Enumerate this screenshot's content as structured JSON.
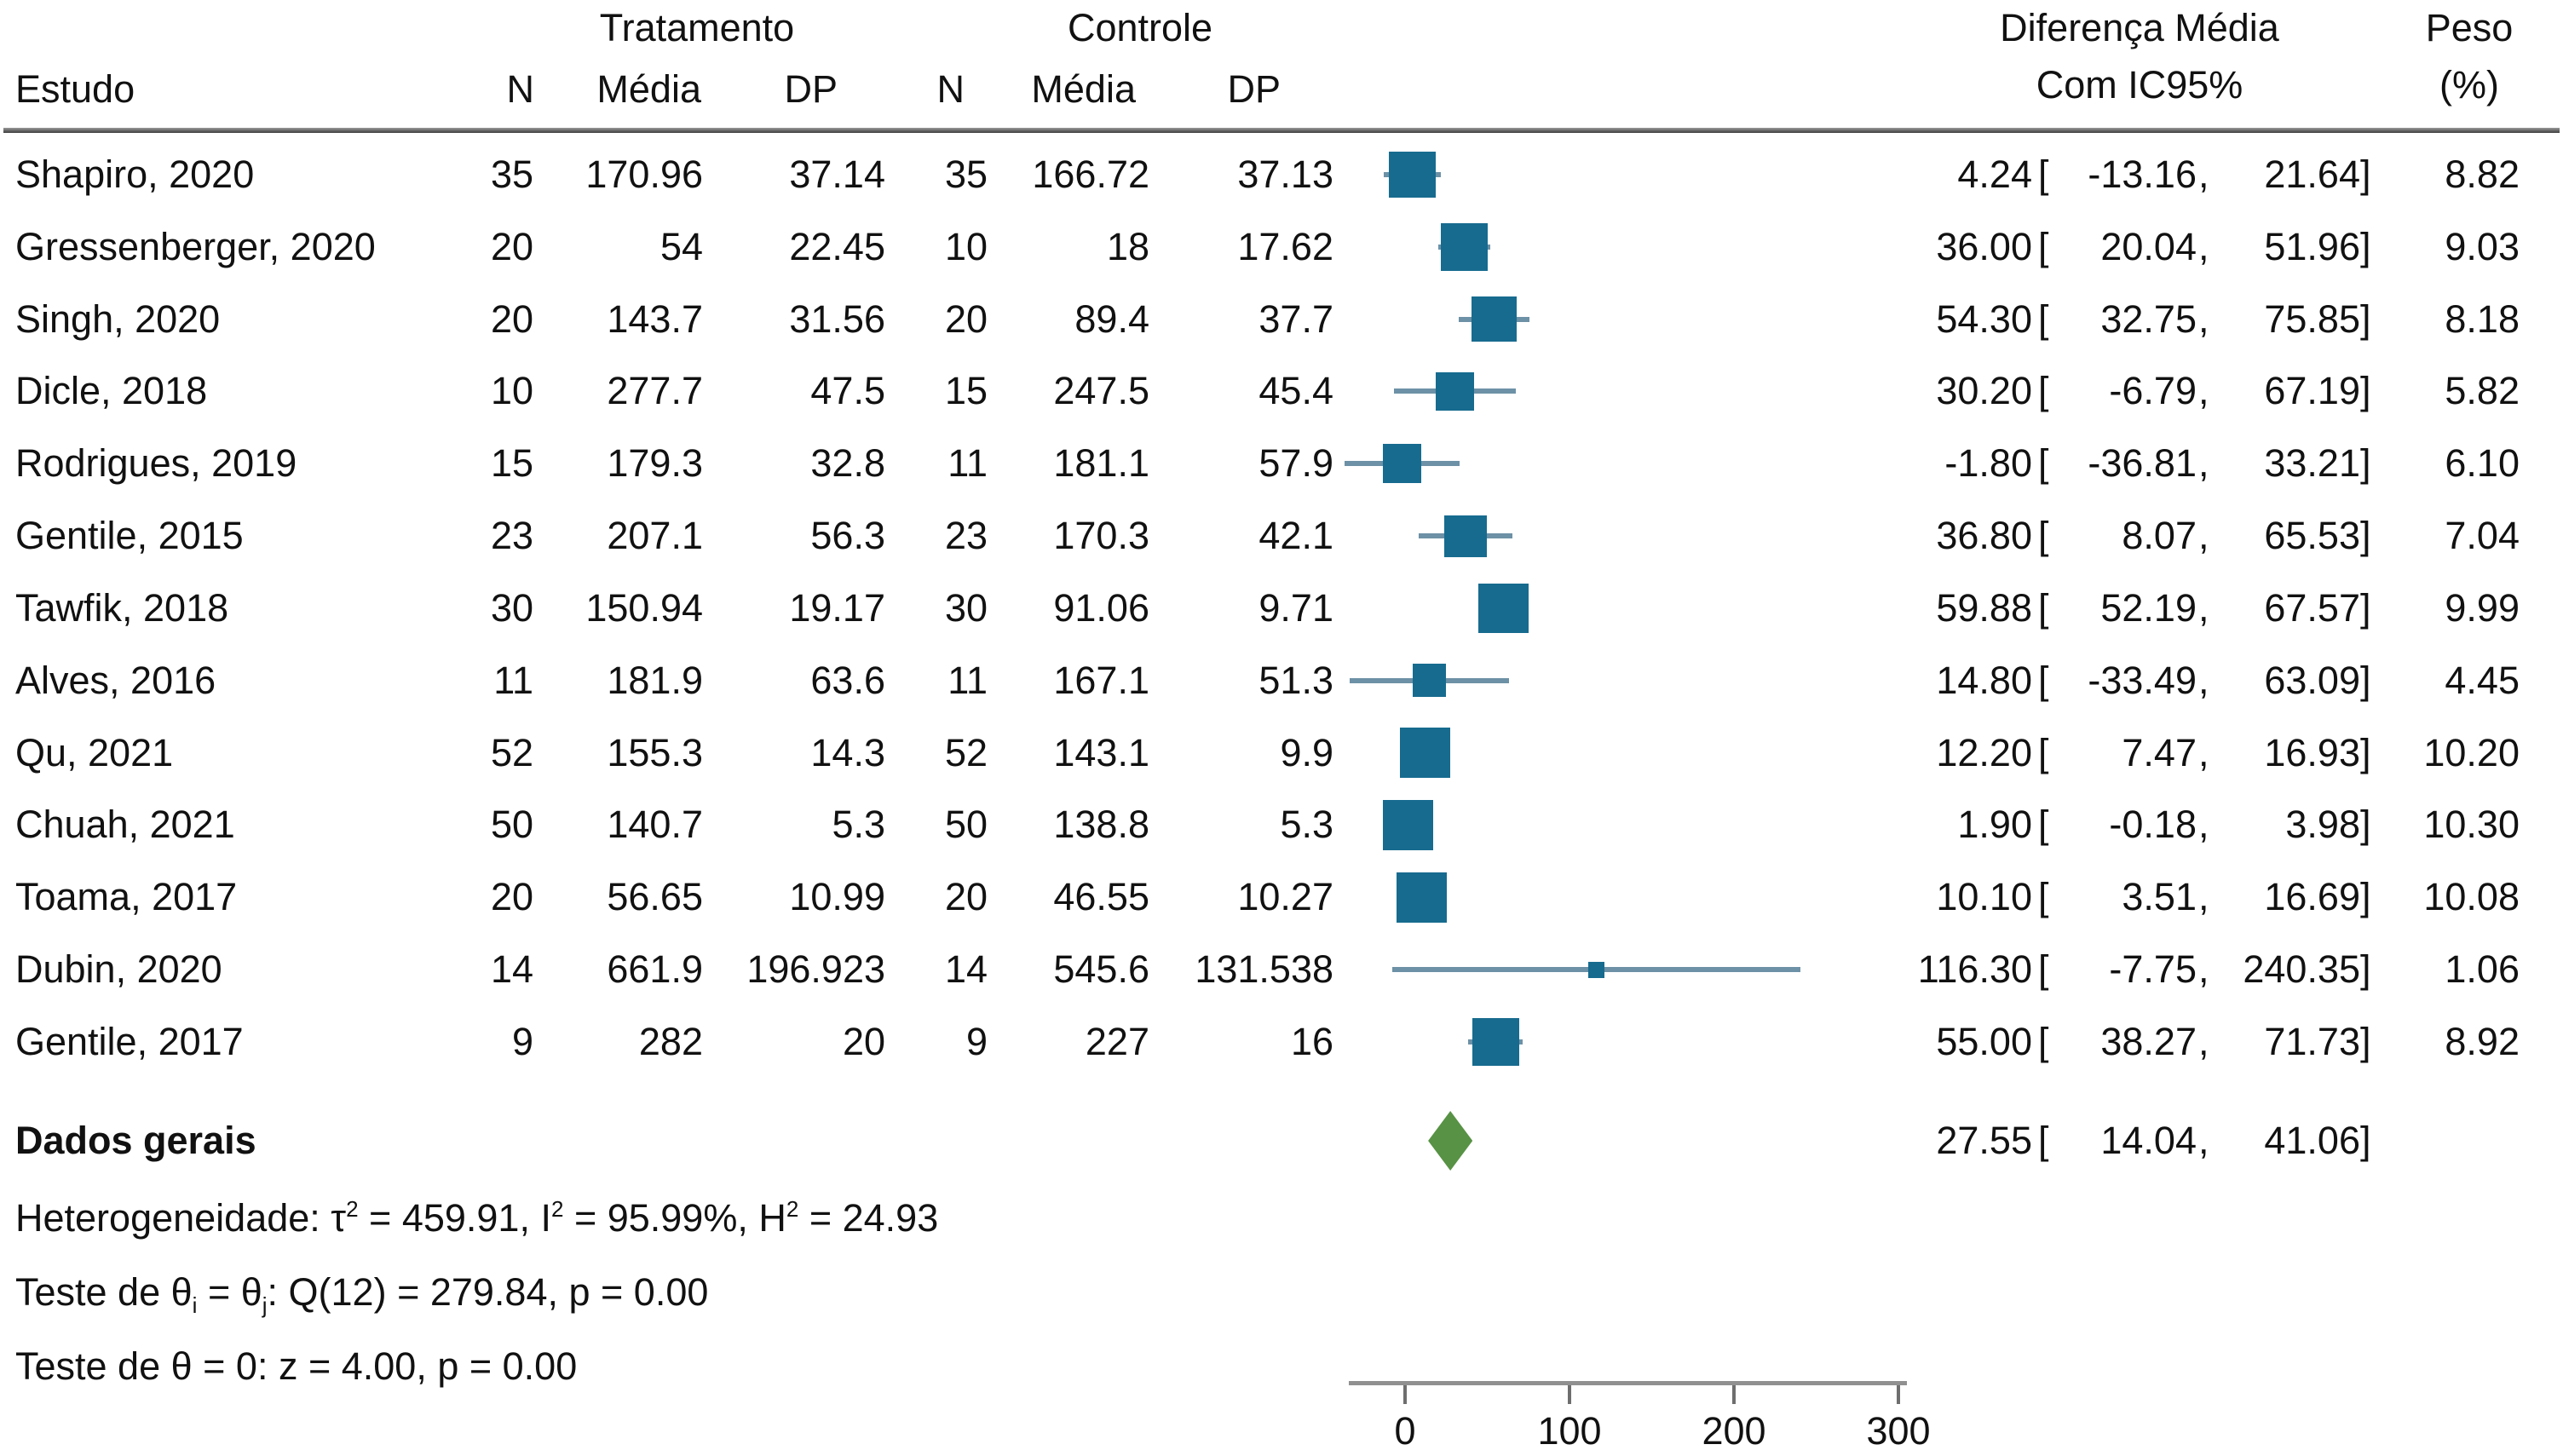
{
  "table": {
    "group_headers": {
      "treatment": "Tratamento",
      "control": "Controle",
      "diff_line1": "Diferença Média",
      "diff_line2": "Com IC95%",
      "weight_line1": "Peso",
      "weight_line2": "(%)"
    },
    "col_headers": {
      "study": "Estudo",
      "n": "N",
      "mean": "Média",
      "sd": "DP"
    },
    "rows": [
      {
        "study": "Shapiro, 2020",
        "n1": "35",
        "mean1": "170.96",
        "sd1": "37.14",
        "n2": "35",
        "mean2": "166.72",
        "sd2": "37.13",
        "est": "4.24",
        "lo": "-13.16",
        "hi": "21.64",
        "weight": "8.82",
        "est_v": 4.24,
        "lo_v": -13.16,
        "hi_v": 21.64,
        "w_v": 8.82
      },
      {
        "study": "Gressenberger, 2020",
        "n1": "20",
        "mean1": "54",
        "sd1": "22.45",
        "n2": "10",
        "mean2": "18",
        "sd2": "17.62",
        "est": "36.00",
        "lo": "20.04",
        "hi": "51.96",
        "weight": "9.03",
        "est_v": 36.0,
        "lo_v": 20.04,
        "hi_v": 51.96,
        "w_v": 9.03
      },
      {
        "study": "Singh, 2020",
        "n1": "20",
        "mean1": "143.7",
        "sd1": "31.56",
        "n2": "20",
        "mean2": "89.4",
        "sd2": "37.7",
        "est": "54.30",
        "lo": "32.75",
        "hi": "75.85",
        "weight": "8.18",
        "est_v": 54.3,
        "lo_v": 32.75,
        "hi_v": 75.85,
        "w_v": 8.18
      },
      {
        "study": "Dicle, 2018",
        "n1": "10",
        "mean1": "277.7",
        "sd1": "47.5",
        "n2": "15",
        "mean2": "247.5",
        "sd2": "45.4",
        "est": "30.20",
        "lo": "-6.79",
        "hi": "67.19",
        "weight": "5.82",
        "est_v": 30.2,
        "lo_v": -6.79,
        "hi_v": 67.19,
        "w_v": 5.82
      },
      {
        "study": "Rodrigues, 2019",
        "n1": "15",
        "mean1": "179.3",
        "sd1": "32.8",
        "n2": "11",
        "mean2": "181.1",
        "sd2": "57.9",
        "est": "-1.80",
        "lo": "-36.81",
        "hi": "33.21",
        "weight": "6.10",
        "est_v": -1.8,
        "lo_v": -36.81,
        "hi_v": 33.21,
        "w_v": 6.1
      },
      {
        "study": "Gentile, 2015",
        "n1": "23",
        "mean1": "207.1",
        "sd1": "56.3",
        "n2": "23",
        "mean2": "170.3",
        "sd2": "42.1",
        "est": "36.80",
        "lo": "8.07",
        "hi": "65.53",
        "weight": "7.04",
        "est_v": 36.8,
        "lo_v": 8.07,
        "hi_v": 65.53,
        "w_v": 7.04
      },
      {
        "study": "Tawfik, 2018",
        "n1": "30",
        "mean1": "150.94",
        "sd1": "19.17",
        "n2": "30",
        "mean2": "91.06",
        "sd2": "9.71",
        "est": "59.88",
        "lo": "52.19",
        "hi": "67.57",
        "weight": "9.99",
        "est_v": 59.88,
        "lo_v": 52.19,
        "hi_v": 67.57,
        "w_v": 9.99
      },
      {
        "study": "Alves, 2016",
        "n1": "11",
        "mean1": "181.9",
        "sd1": "63.6",
        "n2": "11",
        "mean2": "167.1",
        "sd2": "51.3",
        "est": "14.80",
        "lo": "-33.49",
        "hi": "63.09",
        "weight": "4.45",
        "est_v": 14.8,
        "lo_v": -33.49,
        "hi_v": 63.09,
        "w_v": 4.45
      },
      {
        "study": "Qu, 2021",
        "n1": "52",
        "mean1": "155.3",
        "sd1": "14.3",
        "n2": "52",
        "mean2": "143.1",
        "sd2": "9.9",
        "est": "12.20",
        "lo": "7.47",
        "hi": "16.93",
        "weight": "10.20",
        "est_v": 12.2,
        "lo_v": 7.47,
        "hi_v": 16.93,
        "w_v": 10.2
      },
      {
        "study": "Chuah, 2021",
        "n1": "50",
        "mean1": "140.7",
        "sd1": "5.3",
        "n2": "50",
        "mean2": "138.8",
        "sd2": "5.3",
        "est": "1.90",
        "lo": "-0.18",
        "hi": "3.98",
        "weight": "10.30",
        "est_v": 1.9,
        "lo_v": -0.18,
        "hi_v": 3.98,
        "w_v": 10.3
      },
      {
        "study": "Toama, 2017",
        "n1": "20",
        "mean1": "56.65",
        "sd1": "10.99",
        "n2": "20",
        "mean2": "46.55",
        "sd2": "10.27",
        "est": "10.10",
        "lo": "3.51",
        "hi": "16.69",
        "weight": "10.08",
        "est_v": 10.1,
        "lo_v": 3.51,
        "hi_v": 16.69,
        "w_v": 10.08
      },
      {
        "study": "Dubin, 2020",
        "n1": "14",
        "mean1": "661.9",
        "sd1": "196.923",
        "n2": "14",
        "mean2": "545.6",
        "sd2": "131.538",
        "est": "116.30",
        "lo": "-7.75",
        "hi": "240.35",
        "weight": "1.06",
        "est_v": 116.3,
        "lo_v": -7.75,
        "hi_v": 240.35,
        "w_v": 1.06
      },
      {
        "study": "Gentile, 2017",
        "n1": "9",
        "mean1": "282",
        "sd1": "20",
        "n2": "9",
        "mean2": "227",
        "sd2": "16",
        "est": "55.00",
        "lo": "38.27",
        "hi": "71.73",
        "weight": "8.92",
        "est_v": 55.0,
        "lo_v": 38.27,
        "hi_v": 71.73,
        "w_v": 8.92
      }
    ],
    "overall": {
      "label": "Dados gerais",
      "est": "27.55",
      "lo": "14.04",
      "hi": "41.06",
      "est_v": 27.55,
      "lo_v": 14.04,
      "hi_v": 41.06
    }
  },
  "stats": [
    {
      "segments": [
        {
          "t": "Heterogeneidade: τ"
        },
        {
          "t": "2",
          "style": "sup"
        },
        {
          "t": " = 459.91, I"
        },
        {
          "t": "2",
          "style": "sup"
        },
        {
          "t": " = 95.99%, H"
        },
        {
          "t": "2",
          "style": "sup"
        },
        {
          "t": " = 24.93"
        }
      ]
    },
    {
      "segments": [
        {
          "t": "Teste de θ"
        },
        {
          "t": "i",
          "style": "sub"
        },
        {
          "t": " = θ"
        },
        {
          "t": "j",
          "style": "sub"
        },
        {
          "t": ": Q(12) = 279.84, p = 0.00"
        }
      ]
    },
    {
      "segments": [
        {
          "t": "Teste de θ = 0: z = 4.00, p = 0.00"
        }
      ]
    }
  ],
  "axis": {
    "tick_labels": [
      "0",
      "100",
      "200",
      "300"
    ],
    "tick_values": [
      0,
      100,
      200,
      300
    ]
  },
  "colors": {
    "square": "#176b8f",
    "ci_line": "#6d91a6",
    "diamond": "#589245",
    "axis_line": "#909090",
    "tick": "#6e6e6e",
    "text": "#111111"
  },
  "chart_data": {
    "type": "forest",
    "title": "",
    "effect_label": "Diferença Média Com IC95%",
    "weight_label": "Peso (%)",
    "x_axis": {
      "ticks": [
        0,
        100,
        200,
        300
      ]
    },
    "studies": [
      {
        "name": "Shapiro, 2020",
        "n_trat": 35,
        "media_trat": 170.96,
        "dp_trat": 37.14,
        "n_ctrl": 35,
        "media_ctrl": 166.72,
        "dp_ctrl": 37.13,
        "estimate": 4.24,
        "ci_low": -13.16,
        "ci_high": 21.64,
        "weight_pct": 8.82
      },
      {
        "name": "Gressenberger, 2020",
        "n_trat": 20,
        "media_trat": 54,
        "dp_trat": 22.45,
        "n_ctrl": 10,
        "media_ctrl": 18,
        "dp_ctrl": 17.62,
        "estimate": 36.0,
        "ci_low": 20.04,
        "ci_high": 51.96,
        "weight_pct": 9.03
      },
      {
        "name": "Singh, 2020",
        "n_trat": 20,
        "media_trat": 143.7,
        "dp_trat": 31.56,
        "n_ctrl": 20,
        "media_ctrl": 89.4,
        "dp_ctrl": 37.7,
        "estimate": 54.3,
        "ci_low": 32.75,
        "ci_high": 75.85,
        "weight_pct": 8.18
      },
      {
        "name": "Dicle, 2018",
        "n_trat": 10,
        "media_trat": 277.7,
        "dp_trat": 47.5,
        "n_ctrl": 15,
        "media_ctrl": 247.5,
        "dp_ctrl": 45.4,
        "estimate": 30.2,
        "ci_low": -6.79,
        "ci_high": 67.19,
        "weight_pct": 5.82
      },
      {
        "name": "Rodrigues, 2019",
        "n_trat": 15,
        "media_trat": 179.3,
        "dp_trat": 32.8,
        "n_ctrl": 11,
        "media_ctrl": 181.1,
        "dp_ctrl": 57.9,
        "estimate": -1.8,
        "ci_low": -36.81,
        "ci_high": 33.21,
        "weight_pct": 6.1
      },
      {
        "name": "Gentile, 2015",
        "n_trat": 23,
        "media_trat": 207.1,
        "dp_trat": 56.3,
        "n_ctrl": 23,
        "media_ctrl": 170.3,
        "dp_ctrl": 42.1,
        "estimate": 36.8,
        "ci_low": 8.07,
        "ci_high": 65.53,
        "weight_pct": 7.04
      },
      {
        "name": "Tawfik, 2018",
        "n_trat": 30,
        "media_trat": 150.94,
        "dp_trat": 19.17,
        "n_ctrl": 30,
        "media_ctrl": 91.06,
        "dp_ctrl": 9.71,
        "estimate": 59.88,
        "ci_low": 52.19,
        "ci_high": 67.57,
        "weight_pct": 9.99
      },
      {
        "name": "Alves, 2016",
        "n_trat": 11,
        "media_trat": 181.9,
        "dp_trat": 63.6,
        "n_ctrl": 11,
        "media_ctrl": 167.1,
        "dp_ctrl": 51.3,
        "estimate": 14.8,
        "ci_low": -33.49,
        "ci_high": 63.09,
        "weight_pct": 4.45
      },
      {
        "name": "Qu, 2021",
        "n_trat": 52,
        "media_trat": 155.3,
        "dp_trat": 14.3,
        "n_ctrl": 52,
        "media_ctrl": 143.1,
        "dp_ctrl": 9.9,
        "estimate": 12.2,
        "ci_low": 7.47,
        "ci_high": 16.93,
        "weight_pct": 10.2
      },
      {
        "name": "Chuah, 2021",
        "n_trat": 50,
        "media_trat": 140.7,
        "dp_trat": 5.3,
        "n_ctrl": 50,
        "media_ctrl": 138.8,
        "dp_ctrl": 5.3,
        "estimate": 1.9,
        "ci_low": -0.18,
        "ci_high": 3.98,
        "weight_pct": 10.3
      },
      {
        "name": "Toama, 2017",
        "n_trat": 20,
        "media_trat": 56.65,
        "dp_trat": 10.99,
        "n_ctrl": 20,
        "media_ctrl": 46.55,
        "dp_ctrl": 10.27,
        "estimate": 10.1,
        "ci_low": 3.51,
        "ci_high": 16.69,
        "weight_pct": 10.08
      },
      {
        "name": "Dubin, 2020",
        "n_trat": 14,
        "media_trat": 661.9,
        "dp_trat": 196.923,
        "n_ctrl": 14,
        "media_ctrl": 545.6,
        "dp_ctrl": 131.538,
        "estimate": 116.3,
        "ci_low": -7.75,
        "ci_high": 240.35,
        "weight_pct": 1.06
      },
      {
        "name": "Gentile, 2017",
        "n_trat": 9,
        "media_trat": 282,
        "dp_trat": 20,
        "n_ctrl": 9,
        "media_ctrl": 227,
        "dp_ctrl": 16,
        "estimate": 55.0,
        "ci_low": 38.27,
        "ci_high": 71.73,
        "weight_pct": 8.92
      }
    ],
    "overall": {
      "label": "Dados gerais",
      "estimate": 27.55,
      "ci_low": 14.04,
      "ci_high": 41.06
    },
    "heterogeneity": {
      "tau2": 459.91,
      "I2_pct": 95.99,
      "H2": 24.93
    },
    "test_theta_i_eq_theta_j": "Q(12) = 279.84, p = 0.00",
    "test_theta_eq_0": "z = 4.00, p = 0.00"
  }
}
